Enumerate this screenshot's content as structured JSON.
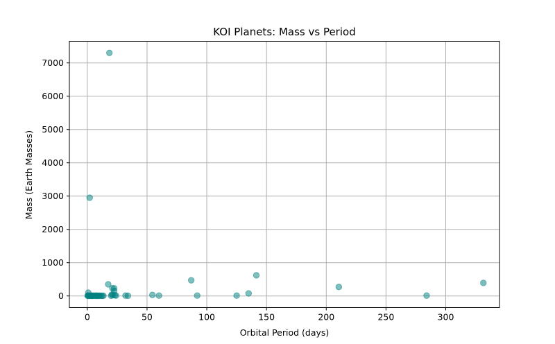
{
  "chart_data": {
    "type": "scatter",
    "title": "KOI Planets: Mass vs Period",
    "xlabel": "Orbital Period (days)",
    "ylabel": "Mass (Earth Masses)",
    "xlim": [
      -15,
      345
    ],
    "ylim": [
      -350,
      7650
    ],
    "xticks": [
      0,
      50,
      100,
      150,
      200,
      250,
      300
    ],
    "yticks": [
      0,
      1000,
      2000,
      3000,
      4000,
      5000,
      6000,
      7000
    ],
    "grid": true,
    "marker_color": "#008080",
    "marker_alpha": 0.5,
    "series": [
      {
        "name": "KOI planets",
        "points": [
          [
            18.5,
            7300
          ],
          [
            2.0,
            2950
          ],
          [
            0.8,
            100
          ],
          [
            0.3,
            5
          ],
          [
            0.6,
            10
          ],
          [
            1.0,
            3
          ],
          [
            1.5,
            8
          ],
          [
            2.2,
            4
          ],
          [
            3.0,
            12
          ],
          [
            3.5,
            6
          ],
          [
            4.0,
            2
          ],
          [
            4.5,
            9
          ],
          [
            5.2,
            5
          ],
          [
            6.0,
            7
          ],
          [
            6.8,
            3
          ],
          [
            7.5,
            11
          ],
          [
            8.2,
            4
          ],
          [
            9.0,
            6
          ],
          [
            9.8,
            2
          ],
          [
            10.5,
            8
          ],
          [
            11.5,
            5
          ],
          [
            12.5,
            3
          ],
          [
            13.5,
            6
          ],
          [
            17.5,
            350
          ],
          [
            21.0,
            230
          ],
          [
            22.5,
            230
          ],
          [
            20.5,
            40
          ],
          [
            21.5,
            30
          ],
          [
            22.5,
            150
          ],
          [
            23.0,
            20
          ],
          [
            24.0,
            10
          ],
          [
            20.0,
            5
          ],
          [
            32.0,
            10
          ],
          [
            34.0,
            5
          ],
          [
            54.5,
            30
          ],
          [
            60.0,
            10
          ],
          [
            87.0,
            470
          ],
          [
            92.0,
            10
          ],
          [
            125.0,
            10
          ],
          [
            135.0,
            75
          ],
          [
            141.5,
            620
          ],
          [
            210.5,
            270
          ],
          [
            284.0,
            10
          ],
          [
            331.5,
            390
          ]
        ]
      }
    ]
  }
}
